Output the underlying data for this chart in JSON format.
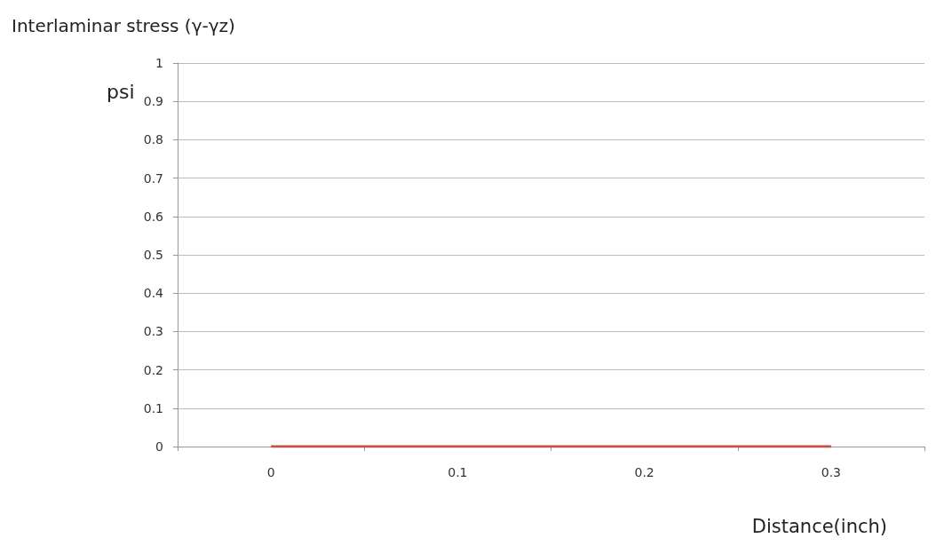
{
  "chart_data": {
    "type": "line",
    "title": "Interlaminar stress (γ-γz)",
    "ylabel": "psi",
    "xlabel": "Distance(inch)",
    "categories": [
      "0",
      "0.1",
      "0.2",
      "0.3"
    ],
    "series": [
      {
        "color": "#c0504d",
        "values": [
          0,
          0,
          0,
          0
        ]
      }
    ],
    "ylim": [
      0,
      1
    ],
    "yticks": [
      0,
      0.1,
      0.2,
      0.3,
      0.4,
      0.5,
      0.6,
      0.7,
      0.8,
      0.9,
      1
    ],
    "grid": "y",
    "marker": "none",
    "line_style": "solid"
  }
}
